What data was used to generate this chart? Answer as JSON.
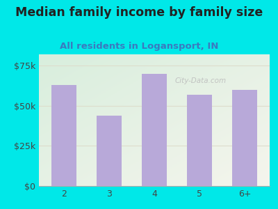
{
  "title": "Median family income by family size",
  "subtitle": "All residents in Logansport, IN",
  "categories": [
    "2",
    "3",
    "4",
    "5",
    "6+"
  ],
  "values": [
    63000,
    44000,
    70000,
    57000,
    60000
  ],
  "bar_color": "#b8a9d9",
  "background_outer": "#00e8e8",
  "background_inner_topleft": "#d8eedd",
  "background_inner_bottomright": "#f5f5ed",
  "title_color": "#222222",
  "subtitle_color": "#3a7abf",
  "ytick_labels": [
    "$0",
    "$25k",
    "$50k",
    "$75k"
  ],
  "ytick_values": [
    0,
    25000,
    50000,
    75000
  ],
  "ylim": [
    0,
    82000
  ],
  "title_fontsize": 12.5,
  "subtitle_fontsize": 9.5,
  "watermark": "City-Data.com",
  "grid_color": "#ddddcc"
}
